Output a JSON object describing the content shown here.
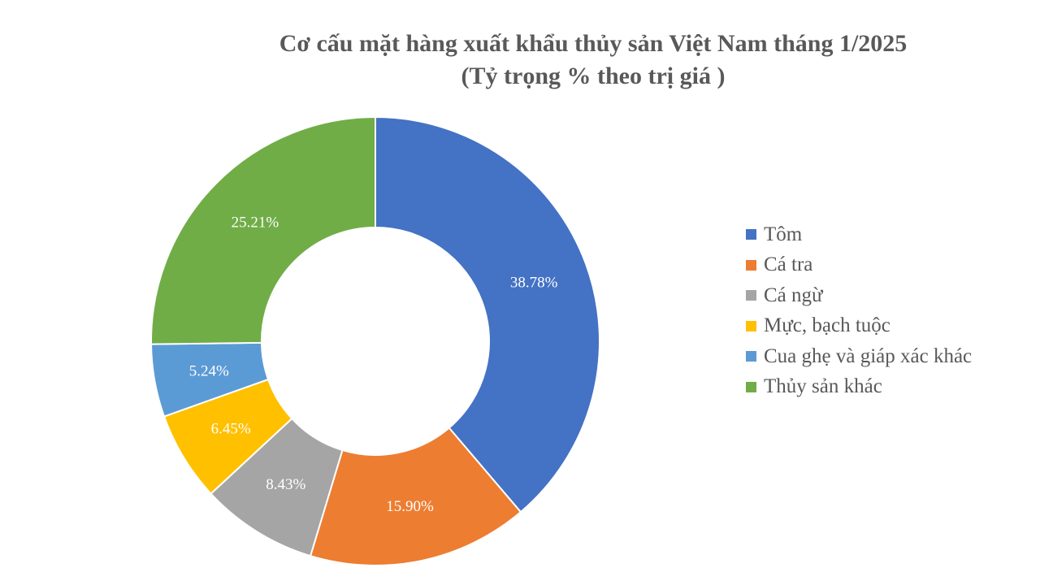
{
  "chart_data": {
    "type": "pie",
    "variant": "donut",
    "title": "Cơ cấu mặt hàng xuất khẩu thủy sản Việt Nam tháng 1/2025",
    "subtitle": "(Tỷ trọng % theo trị giá )",
    "legend_position": "right",
    "slices": [
      {
        "label": "Tôm",
        "value": 38.78,
        "value_label": "38.78%",
        "color": "#4472C4"
      },
      {
        "label": "Cá tra",
        "value": 15.9,
        "value_label": "15.90%",
        "color": "#ED7D31"
      },
      {
        "label": "Cá ngừ",
        "value": 8.43,
        "value_label": "8.43%",
        "color": "#A5A5A5"
      },
      {
        "label": "Mực, bạch tuộc",
        "value": 6.45,
        "value_label": "6.45%",
        "color": "#FFC000"
      },
      {
        "label": "Cua ghẹ và giáp xác khác",
        "value": 5.24,
        "value_label": "5.24%",
        "color": "#5B9BD5"
      },
      {
        "label": "Thủy sản khác",
        "value": 25.21,
        "value_label": "25.21%",
        "color": "#70AD47"
      }
    ]
  }
}
